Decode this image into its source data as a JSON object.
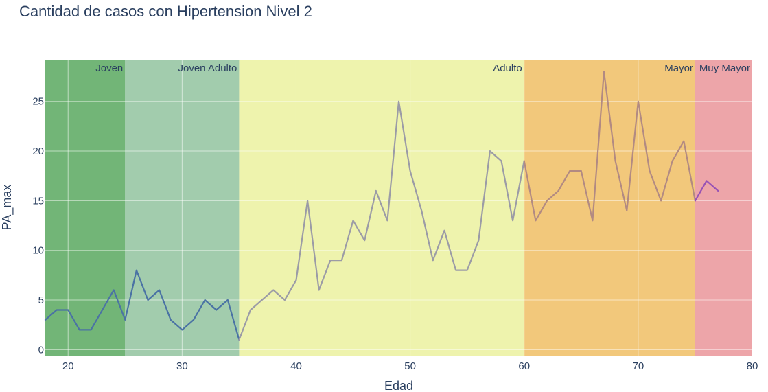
{
  "chart_data": {
    "type": "line",
    "title": "Cantidad de casos con Hipertension Nivel 2",
    "xlabel": "Edad",
    "ylabel": "PA_max",
    "xlim": [
      18,
      80
    ],
    "ylim": [
      -0.6,
      29.2
    ],
    "xticks": [
      20,
      30,
      40,
      50,
      60,
      70,
      80
    ],
    "yticks": [
      0,
      5,
      10,
      15,
      20,
      25
    ],
    "grid": true,
    "legend": "none",
    "bands": [
      {
        "label": "Joven",
        "x0": 18,
        "x1": 25,
        "color": "#72b577"
      },
      {
        "label": "Joven Adulto",
        "x0": 25,
        "x1": 35,
        "color": "#a2ccad"
      },
      {
        "label": "Adulto",
        "x0": 35,
        "x1": 60,
        "color": "#eef3ad"
      },
      {
        "label": "Mayor",
        "x0": 60,
        "x1": 75,
        "color": "#f2c87b"
      },
      {
        "label": "Muy Mayor",
        "x0": 75,
        "x1": 80,
        "color": "#eda5a9"
      }
    ],
    "series": [
      {
        "color": "#4a72a4",
        "x": [
          18,
          19,
          20,
          21,
          22,
          23,
          24,
          25,
          26,
          27,
          28,
          29,
          30,
          31,
          32,
          33,
          34,
          35
        ],
        "y": [
          3,
          4,
          4,
          2,
          2,
          4,
          6,
          3,
          8,
          5,
          6,
          3,
          2,
          3,
          5,
          4,
          5,
          1
        ]
      },
      {
        "color": "#9b9ba6",
        "x": [
          35,
          36,
          37,
          38,
          39,
          40,
          41,
          42,
          43,
          44,
          45,
          46,
          47,
          48,
          49,
          50,
          51,
          52,
          53,
          54,
          55,
          56,
          57,
          58,
          59,
          60
        ],
        "y": [
          1,
          4,
          5,
          6,
          5,
          7,
          15,
          6,
          9,
          9,
          13,
          11,
          16,
          13,
          25,
          18,
          14,
          9,
          12,
          8,
          8,
          11,
          20,
          19,
          13,
          19
        ]
      },
      {
        "color": "#b28a82",
        "x": [
          60,
          61,
          62,
          63,
          64,
          65,
          66,
          67,
          68,
          69,
          70,
          71,
          72,
          73,
          74,
          75
        ],
        "y": [
          19,
          13,
          15,
          16,
          18,
          18,
          13,
          28,
          19,
          14,
          25,
          18,
          15,
          19,
          21,
          15
        ]
      },
      {
        "color": "#9752b5",
        "x": [
          75,
          76,
          77
        ],
        "y": [
          15,
          17,
          16
        ]
      }
    ]
  }
}
